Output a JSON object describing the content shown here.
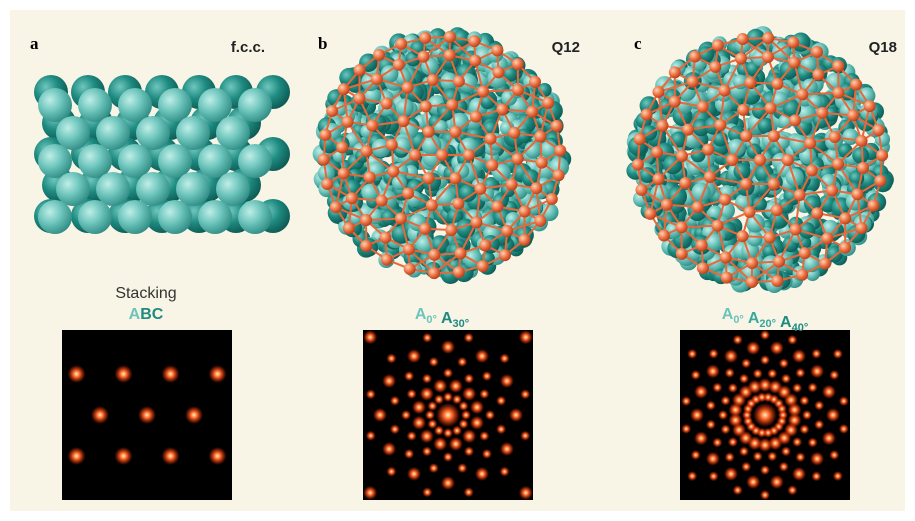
{
  "panels": [
    {
      "label": "a",
      "title": "f.c.c.",
      "caption": "Stacking",
      "layers": [
        {
          "letter": "A",
          "color": "#6cc4bb"
        },
        {
          "letter": "B",
          "color": "#1e8a80"
        },
        {
          "letter": "C",
          "color": "#1e8a80"
        }
      ]
    },
    {
      "label": "b",
      "title": "Q12",
      "layers": [
        {
          "letter": "A",
          "sub": "0°",
          "color": "#6cc4bb"
        },
        {
          "letter": "A",
          "sub": "30°",
          "color": "#1e8a80"
        }
      ]
    },
    {
      "label": "c",
      "title": "Q18",
      "layers": [
        {
          "letter": "A",
          "sub": "0°",
          "color": "#6cc4bb"
        },
        {
          "letter": "A",
          "sub": "20°",
          "color": "#3aa79d"
        },
        {
          "letter": "A",
          "sub": "40°",
          "color": "#1e8a80"
        }
      ]
    }
  ]
}
